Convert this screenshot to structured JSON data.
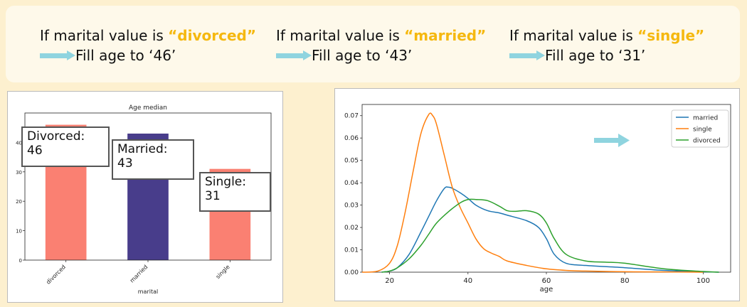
{
  "banner": {
    "rules": [
      {
        "prefix": "If marital value is ",
        "value": "“divorced”",
        "result": "Fill age to ‘46’"
      },
      {
        "prefix": "If marital value is ",
        "value": "“married”",
        "result": "Fill age to ‘43’"
      },
      {
        "prefix": "If marital value is ",
        "value": "“single”",
        "result": "Fill age to ‘31’"
      }
    ],
    "arrow_color": "#8fd4df",
    "highlight_color": "#f5b80f"
  },
  "callouts": [
    {
      "label": "Divorced:",
      "value": "46"
    },
    {
      "label": "Married:",
      "value": "43"
    },
    {
      "label": "Single:",
      "value": "31"
    }
  ],
  "chart_data": [
    {
      "type": "bar",
      "title": "Age median",
      "xlabel": "marital",
      "ylabel": "",
      "categories": [
        "divorced",
        "married",
        "single"
      ],
      "values": [
        46,
        43,
        31
      ],
      "colors": [
        "#fa8072",
        "#483d8b",
        "#fa8072"
      ],
      "ylim": [
        0,
        50
      ],
      "yticks": [
        0,
        10,
        20,
        30,
        40
      ],
      "grid": false
    },
    {
      "type": "line",
      "title": "",
      "xlabel": "age",
      "ylabel": "",
      "xlim": [
        13,
        107
      ],
      "ylim": [
        0,
        0.075
      ],
      "xticks": [
        20,
        40,
        60,
        80,
        100
      ],
      "yticks": [
        "0.00",
        "0.01",
        "0.02",
        "0.03",
        "0.04",
        "0.05",
        "0.06",
        "0.07"
      ],
      "legend": "top-right",
      "series": [
        {
          "name": "married",
          "color": "#1f77b4",
          "x": [
            18,
            20,
            22,
            25,
            28,
            30,
            32,
            34,
            35,
            36,
            38,
            40,
            42,
            45,
            48,
            50,
            55,
            58,
            60,
            62,
            65,
            70,
            80,
            90,
            100,
            104
          ],
          "y": [
            0,
            0.0005,
            0.002,
            0.008,
            0.018,
            0.025,
            0.032,
            0.0375,
            0.038,
            0.0375,
            0.0355,
            0.033,
            0.03,
            0.0275,
            0.0265,
            0.0255,
            0.023,
            0.02,
            0.015,
            0.008,
            0.004,
            0.003,
            0.002,
            0.0008,
            0.0002,
            0
          ]
        },
        {
          "name": "single",
          "color": "#ff7f0e",
          "x": [
            13,
            17,
            20,
            22,
            24,
            26,
            28,
            30,
            31,
            32,
            34,
            36,
            38,
            40,
            42,
            44,
            46,
            48,
            50,
            55,
            60,
            65,
            70,
            80,
            90,
            100
          ],
          "y": [
            0,
            0.0005,
            0.004,
            0.012,
            0.027,
            0.045,
            0.062,
            0.0705,
            0.07,
            0.066,
            0.052,
            0.038,
            0.029,
            0.022,
            0.015,
            0.0105,
            0.0085,
            0.007,
            0.005,
            0.003,
            0.0015,
            0.0008,
            0.0005,
            0.0002,
            0.0001,
            0
          ]
        },
        {
          "name": "divorced",
          "color": "#2ca02c",
          "x": [
            18,
            20,
            22,
            25,
            28,
            30,
            32,
            35,
            38,
            40,
            42,
            45,
            48,
            50,
            52,
            55,
            58,
            60,
            62,
            65,
            70,
            75,
            80,
            90,
            100,
            104
          ],
          "y": [
            0,
            0.0005,
            0.002,
            0.006,
            0.012,
            0.017,
            0.022,
            0.027,
            0.031,
            0.0325,
            0.0325,
            0.032,
            0.0295,
            0.0275,
            0.0272,
            0.0275,
            0.026,
            0.022,
            0.015,
            0.008,
            0.005,
            0.0045,
            0.004,
            0.0015,
            0.0003,
            0
          ]
        }
      ]
    }
  ]
}
